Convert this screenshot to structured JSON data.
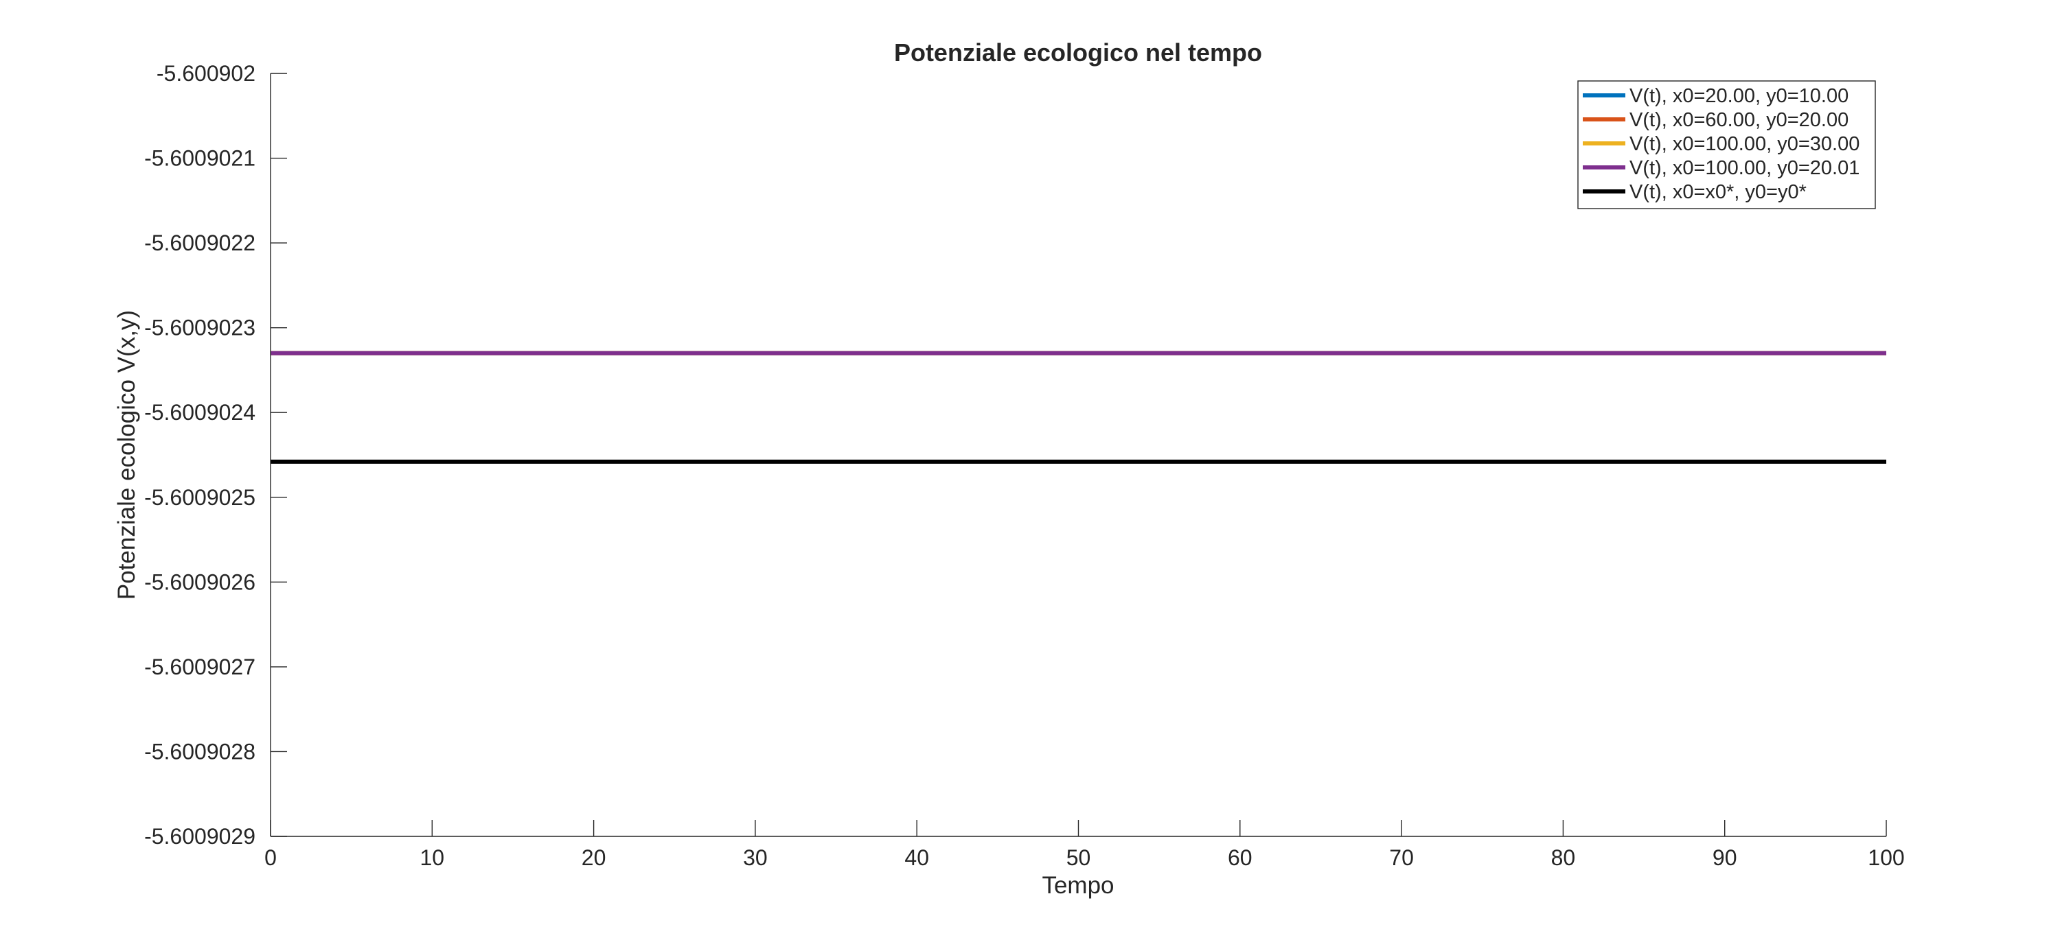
{
  "chart_data": {
    "type": "line",
    "title": "Potenziale ecologico nel tempo",
    "xlabel": "Tempo",
    "ylabel": "Potenziale ecologico V(x,y)",
    "xlim": [
      0,
      100
    ],
    "ylim": [
      -5.6009029,
      -5.600902
    ],
    "x_ticks": [
      0,
      10,
      20,
      30,
      40,
      50,
      60,
      70,
      80,
      90,
      100
    ],
    "x_tick_labels": [
      "0",
      "10",
      "20",
      "30",
      "40",
      "50",
      "60",
      "70",
      "80",
      "90",
      "100"
    ],
    "y_ticks": [
      -5.600902,
      -5.6009021,
      -5.6009022,
      -5.6009023,
      -5.6009024,
      -5.6009025,
      -5.6009026,
      -5.6009027,
      -5.6009028,
      -5.6009029
    ],
    "y_tick_labels": [
      "-5.600902",
      "-5.6009021",
      "-5.6009022",
      "-5.6009023",
      "-5.6009024",
      "-5.6009025",
      "-5.6009026",
      "-5.6009027",
      "-5.6009028",
      "-5.6009029"
    ],
    "grid": false,
    "legend_position": "top-right",
    "x": [
      0,
      100
    ],
    "series": [
      {
        "name": "V(t), x0=20.00, y0=10.00",
        "color": "#0072BD",
        "values": [
          -5.60090233,
          -5.60090233
        ]
      },
      {
        "name": "V(t), x0=60.00, y0=20.00",
        "color": "#D95319",
        "values": [
          -5.60090233,
          -5.60090233
        ]
      },
      {
        "name": "V(t), x0=100.00, y0=30.00",
        "color": "#EDB120",
        "values": [
          -5.60090233,
          -5.60090233
        ]
      },
      {
        "name": "V(t), x0=100.00, y0=20.01",
        "color": "#7E2F8E",
        "values": [
          -5.60090233,
          -5.60090233
        ]
      },
      {
        "name": "V(t),  x0=x0*,  y0=y0*",
        "color": "#000000",
        "values": [
          -5.600902458,
          -5.600902458
        ]
      }
    ]
  }
}
